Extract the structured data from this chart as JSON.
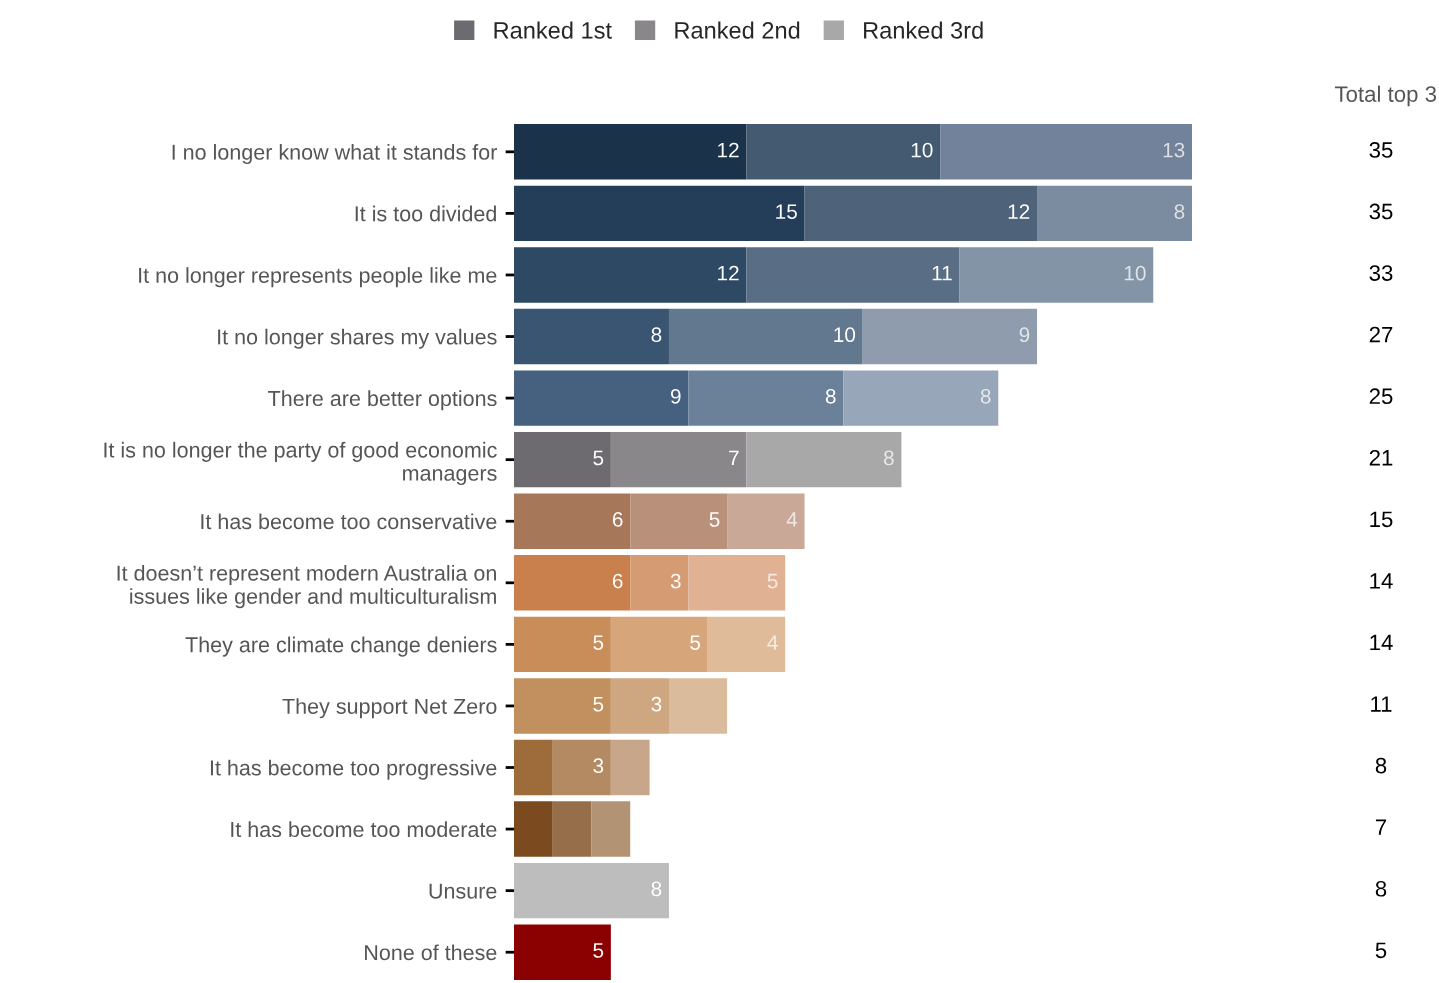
{
  "chart_data": {
    "type": "bar",
    "orientation": "horizontal",
    "stacked": true,
    "legend": "top",
    "grid": false,
    "categories": [
      "I no longer know what it stands for",
      "It is too divided",
      "It no longer represents people like me",
      "It no longer shares my values",
      "There are better options",
      "It is no longer the party of good economic\nmanagers",
      "It has become too conservative",
      "It doesn’t represent modern Australia on\nissues like gender and multiculturalism",
      "They are climate change deniers",
      "They support Net Zero",
      "It has become too progressive",
      "It has become too moderate",
      "Unsure",
      "None of these"
    ],
    "series": [
      {
        "name": "Ranked 1st",
        "color": "#6d6b70",
        "values": [
          12,
          15,
          12,
          8,
          9,
          5,
          6,
          6,
          5,
          5,
          2,
          2,
          8,
          5
        ],
        "value_labels": [
          "12",
          "15",
          "12",
          "8",
          "9",
          "5",
          "6",
          "6",
          "5",
          "5",
          null,
          null,
          "8",
          "5"
        ],
        "colors": [
          "#1b324b",
          "#243e59",
          "#2e4963",
          "#3a5572",
          "#45617f",
          "#6d6b70",
          "#a77759",
          "#c9804d",
          "#c98d5a",
          "#c28f5e",
          "#9e6b3b",
          "#7b4a1e",
          "#bdbdbd",
          "#8b0000"
        ]
      },
      {
        "name": "Ranked 2nd",
        "color": "#898789",
        "values": [
          10,
          12,
          11,
          10,
          8,
          7,
          5,
          3,
          5,
          3,
          3,
          2,
          null,
          null
        ],
        "value_labels": [
          "10",
          "12",
          "11",
          "10",
          "8",
          "7",
          "5",
          "3",
          "5",
          "3",
          "3",
          null,
          null,
          null
        ],
        "colors": [
          "#435a71",
          "#4e6379",
          "#596e85",
          "#62788f",
          "#6b8199",
          "#898789",
          "#b9917a",
          "#d59c73",
          "#d6a57a",
          "#cea67f",
          "#b48a63",
          "#966e49",
          "#bdbdbd",
          "#8b0000"
        ]
      },
      {
        "name": "Ranked 3rd",
        "color": "#a9a8a9",
        "values": [
          13,
          8,
          10,
          9,
          8,
          8,
          4,
          5,
          4,
          3,
          2,
          2,
          null,
          null
        ],
        "value_labels": [
          "13",
          "8",
          "10",
          "9",
          "8",
          "8",
          "4",
          "5",
          "4",
          null,
          null,
          null,
          null,
          null
        ],
        "colors": [
          "#71829a",
          "#7b8ba0",
          "#8494a7",
          "#8e9cae",
          "#97a6b8",
          "#a9a8a9",
          "#c9a897",
          "#e0b293",
          "#dfbb9a",
          "#dabc9d",
          "#c7a68a",
          "#b29475",
          "#bdbdbd",
          "#8b0000"
        ]
      }
    ],
    "annotations": [
      "Total top 3",
      "35",
      "35",
      "33",
      "27",
      "25",
      "21",
      "15",
      "14",
      "14",
      "11",
      "8",
      "7",
      "8",
      "5"
    ]
  }
}
